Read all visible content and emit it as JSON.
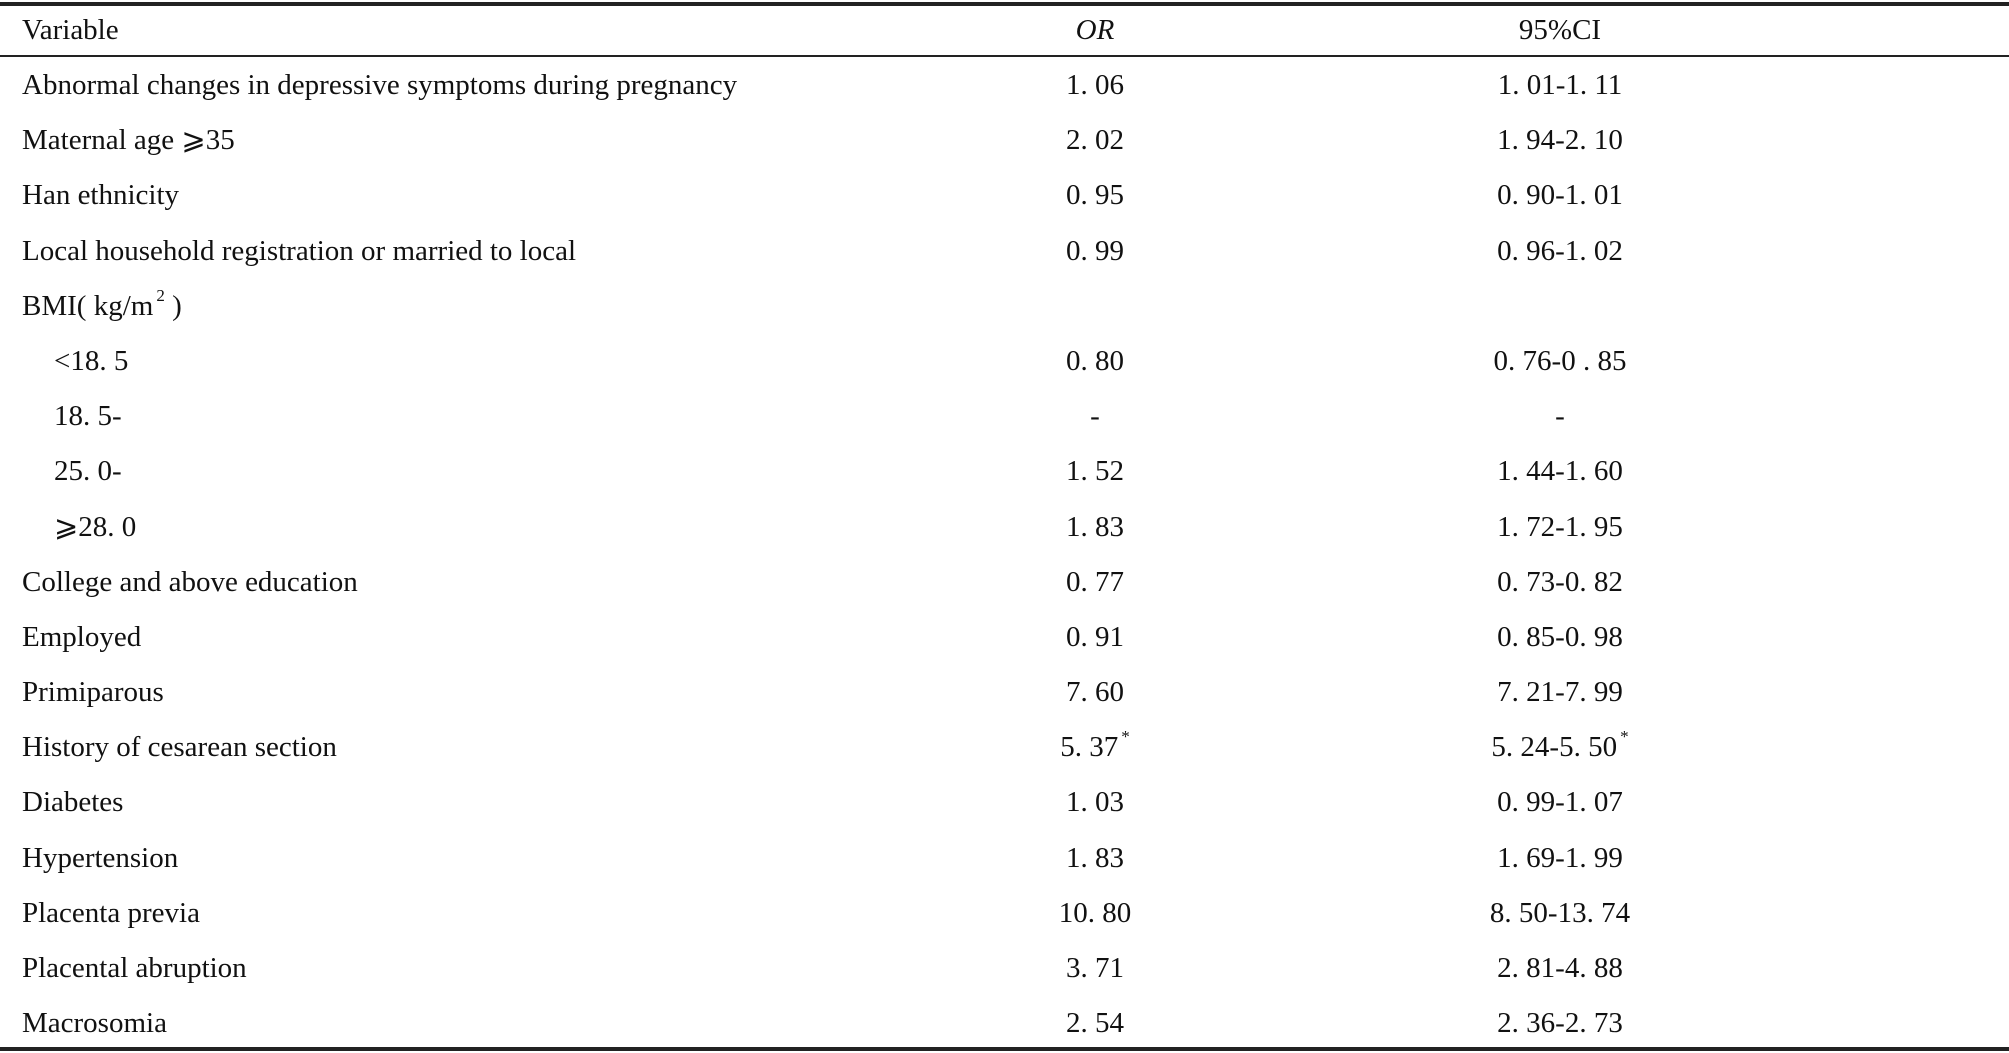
{
  "table": {
    "headers": {
      "variable": "Variable",
      "or": "OR",
      "ci": "95%CI"
    },
    "rows": [
      {
        "variable": "Abnormal changes in depressive symptoms during pregnancy",
        "or": "1. 06",
        "ci": "1. 01-1. 11",
        "indent": false
      },
      {
        "variable": "Maternal age ⩾35",
        "or": "2. 02",
        "ci": "1. 94-2. 10",
        "indent": false
      },
      {
        "variable": "Han ethnicity",
        "or": "0. 95",
        "ci": "0. 90-1. 01",
        "indent": false
      },
      {
        "variable": "Local household registration or married to local",
        "or": "0. 99",
        "ci": "0. 96-1. 02",
        "indent": false
      },
      {
        "variable": "BMI( kg/m",
        "variable_sup": "2",
        "variable_suffix": " )",
        "or": "",
        "ci": "",
        "indent": false
      },
      {
        "variable": "<18. 5",
        "or": "0. 80",
        "ci": "0. 76-0 . 85",
        "indent": true
      },
      {
        "variable": "18. 5-",
        "or": "-",
        "ci": "-",
        "indent": true
      },
      {
        "variable": "25. 0-",
        "or": "1. 52",
        "ci": "1. 44-1. 60",
        "indent": true
      },
      {
        "variable": "⩾28. 0",
        "or": "1. 83",
        "ci": "1. 72-1. 95",
        "indent": true
      },
      {
        "variable": "College and above education",
        "or": "0. 77",
        "ci": "0. 73-0. 82",
        "indent": false
      },
      {
        "variable": "Employed",
        "or": "0. 91",
        "ci": "0. 85-0. 98",
        "indent": false
      },
      {
        "variable": "Primiparous",
        "or": "7. 60",
        "ci": "7. 21-7. 99",
        "indent": false
      },
      {
        "variable": "History of cesarean section",
        "or": "5. 37",
        "or_sup": "*",
        "ci": "5. 24-5. 50",
        "ci_sup": "*",
        "indent": false
      },
      {
        "variable": "Diabetes",
        "or": "1. 03",
        "ci": "0. 99-1. 07",
        "indent": false
      },
      {
        "variable": "Hypertension",
        "or": "1. 83",
        "ci": "1. 69-1. 99",
        "indent": false
      },
      {
        "variable": "Placenta previa",
        "or": "10. 80",
        "ci": "8. 50-13. 74",
        "indent": false
      },
      {
        "variable": "Placental abruption",
        "or": "3. 71",
        "ci": "2. 81-4. 88",
        "indent": false
      },
      {
        "variable": "Macrosomia",
        "or": "2. 54",
        "ci": "2. 36-2. 73",
        "indent": false
      }
    ]
  }
}
